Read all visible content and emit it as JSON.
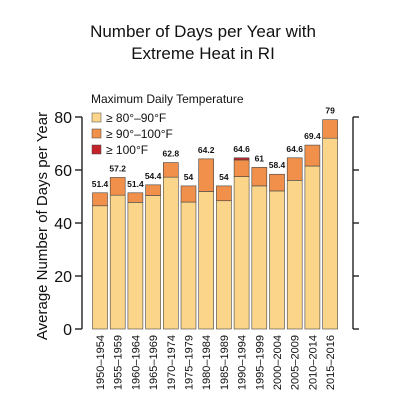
{
  "chart_data": {
    "type": "bar",
    "stacked": true,
    "title_lines": [
      "Number of Days per Year with",
      "Extreme Heat in RI"
    ],
    "xlabel": "",
    "ylabel": "Average Number of Days per Year",
    "ylim": [
      0,
      80
    ],
    "yticks": [
      0,
      20,
      40,
      60,
      80
    ],
    "grid": false,
    "legend": {
      "placement": "top-left",
      "title": "Maximum Daily Temperature",
      "entries": [
        {
          "label": "≥ 80°–90°F",
          "color": "#fbd58a"
        },
        {
          "label": "≥ 90°–100°F",
          "color": "#f0904a"
        },
        {
          "label": "≥ 100°F",
          "color": "#c4232a"
        }
      ]
    },
    "categories": [
      "1950–1954",
      "1955–1959",
      "1960–1964",
      "1965–1969",
      "1970–1974",
      "1975–1979",
      "1980–1984",
      "1985–1989",
      "1990–1994",
      "1995–1999",
      "2000–2004",
      "2005–2009",
      "2010–2014",
      "2015–2016"
    ],
    "series": [
      {
        "name": "≥ 80°–90°F",
        "color": "#fbd58a",
        "values": [
          46.5,
          50.5,
          47.8,
          50.4,
          57.3,
          47.9,
          51.9,
          48.4,
          57.5,
          54.0,
          52.1,
          56.1,
          61.5,
          72.0
        ]
      },
      {
        "name": "≥ 90°–100°F",
        "color": "#f0904a",
        "values": [
          4.9,
          6.7,
          3.6,
          4.0,
          5.5,
          6.1,
          12.3,
          5.6,
          6.3,
          7.0,
          6.3,
          8.5,
          7.9,
          7.0
        ]
      },
      {
        "name": "≥ 100°F",
        "color": "#c4232a",
        "values": [
          0,
          0,
          0,
          0,
          0,
          0,
          0,
          0,
          0.8,
          0,
          0,
          0,
          0,
          0
        ]
      }
    ],
    "totals": [
      51.4,
      57.2,
      51.4,
      54.4,
      62.8,
      54,
      64.2,
      54,
      64.6,
      61,
      58.4,
      64.6,
      69.4,
      79
    ],
    "total_labels": [
      "51.4",
      "57.2",
      "51.4",
      "54.4",
      "62.8",
      "54",
      "64.2",
      "54",
      "64.6",
      "61",
      "58.4",
      "64.6",
      "69.4",
      "79"
    ],
    "colors": {
      "bar_outline": "#444444",
      "axis": "#222222",
      "text": "#111111"
    }
  }
}
